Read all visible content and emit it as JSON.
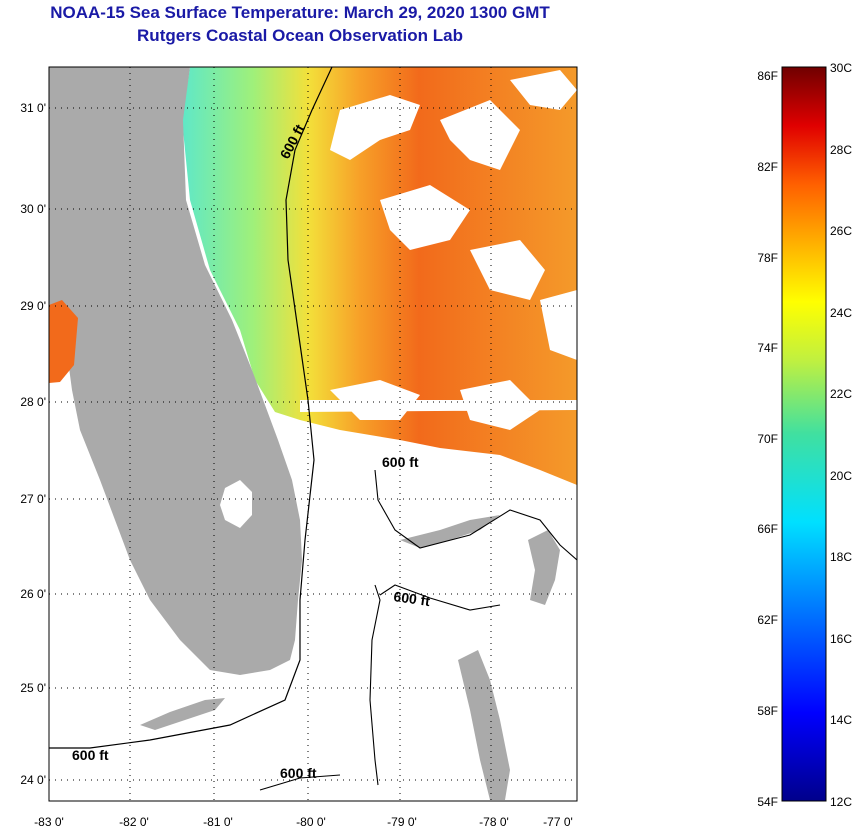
{
  "title": {
    "line1": "NOAA-15 Sea Surface Temperature:  March 29, 2020 1300 GMT",
    "line2": "Rutgers Coastal Ocean Observation Lab"
  },
  "map": {
    "lon_labels": [
      "-83 0'",
      "-82 0'",
      "-81 0'",
      "-80 0'",
      "-79 0'",
      "-78 0'",
      "-77 0'"
    ],
    "lat_labels": [
      "31 0'",
      "30 0'",
      "29 0'",
      "28 0'",
      "27 0'",
      "26 0'",
      "25 0'",
      "24 0'"
    ],
    "contour_labels": [
      "600 ft",
      "600 ft",
      "600 ft",
      "600 ft",
      "600 ft"
    ]
  },
  "colorbar": {
    "fahrenheit": [
      "86F",
      "82F",
      "78F",
      "74F",
      "70F",
      "66F",
      "62F",
      "58F",
      "54F"
    ],
    "celsius": [
      "30C",
      "28C",
      "26C",
      "24C",
      "22C",
      "20C",
      "18C",
      "16C",
      "14C",
      "12C"
    ],
    "colors": [
      "#00008b",
      "#0000ff",
      "#0080ff",
      "#00ffff",
      "#80ff80",
      "#ffff00",
      "#ff8000",
      "#ff0000",
      "#800000"
    ]
  },
  "colors": {
    "land": "#aaaaaa",
    "title": "#1a1aa6",
    "sst_warm": "#f26a1b",
    "sst_cool": "#5fe8b0"
  }
}
